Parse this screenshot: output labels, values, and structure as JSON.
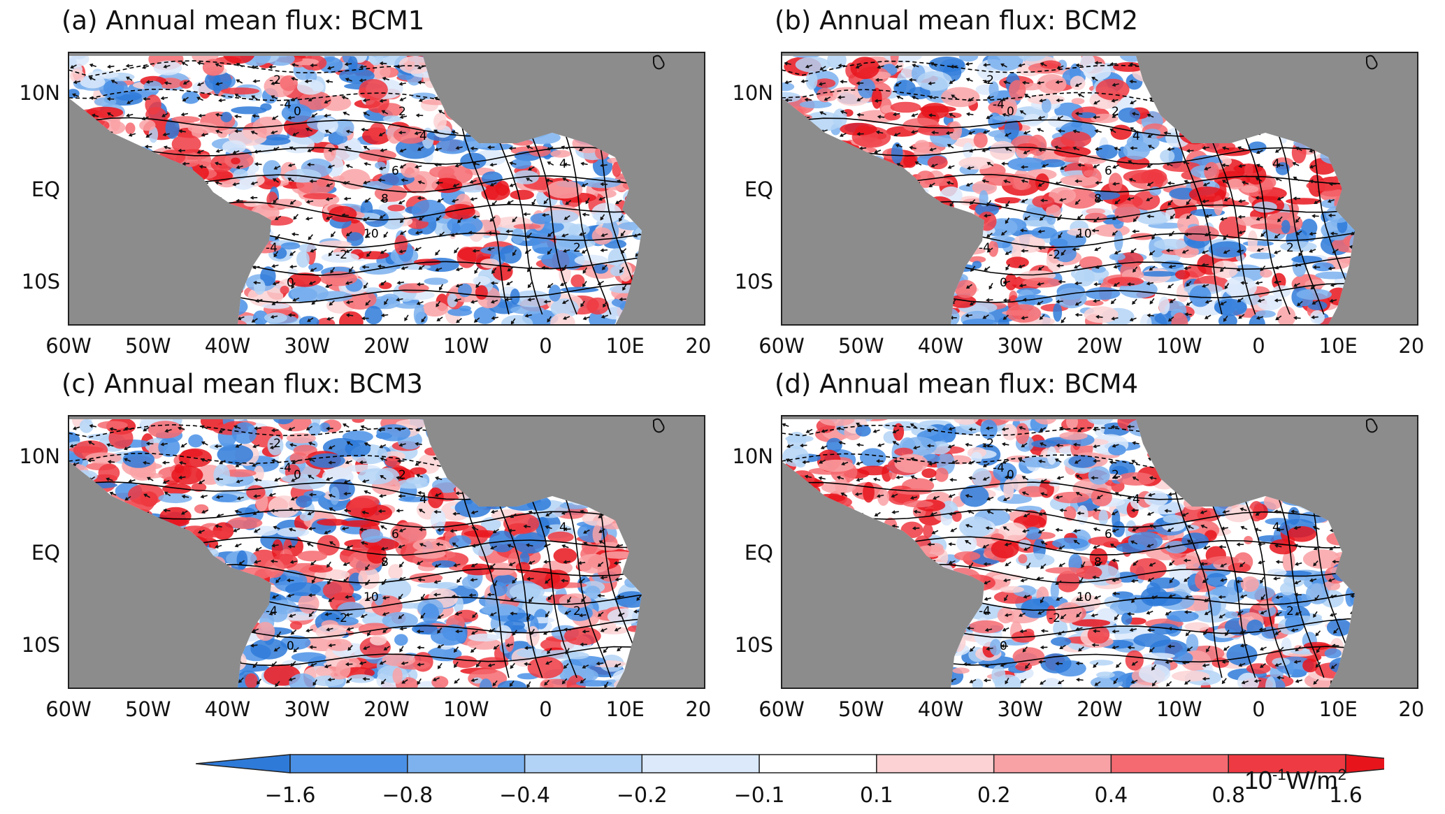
{
  "panels": [
    {
      "title": "(a) Annual mean flux: BCM1"
    },
    {
      "title": "(b) Annual mean flux: BCM2"
    },
    {
      "title": "(c) Annual mean flux: BCM3"
    },
    {
      "title": "(d) Annual mean flux: BCM4"
    }
  ],
  "axes": {
    "lat_labels": [
      "10N",
      "EQ",
      "10S"
    ],
    "lon_labels": [
      "60W",
      "50W",
      "40W",
      "30W",
      "20W",
      "10W",
      "0",
      "10E",
      "20E"
    ]
  },
  "contour_labels": [
    "-2",
    "-4",
    "0",
    "2",
    "4",
    "6",
    "8",
    "10"
  ],
  "colorbar": {
    "ticks": [
      "−1.6",
      "−0.8",
      "−0.4",
      "−0.2",
      "−0.1",
      "0.1",
      "0.2",
      "0.4",
      "0.8",
      "1.6"
    ],
    "colors": [
      "#2e7ad9",
      "#4a90e6",
      "#7db2ef",
      "#b3d3f6",
      "#dbe9fb",
      "#ffffff",
      "#fcd2d4",
      "#f9a2a6",
      "#f46a70",
      "#ee3a42",
      "#e8141c"
    ],
    "unit_base": "10",
    "unit_exp": "-1",
    "unit_rest": "W/m",
    "unit_exp2": "2"
  },
  "colors": {
    "land": "#8c8c8c",
    "ocean_pos": "#e8141c",
    "ocean_neg": "#2e7ad9",
    "contour": "#000000"
  }
}
